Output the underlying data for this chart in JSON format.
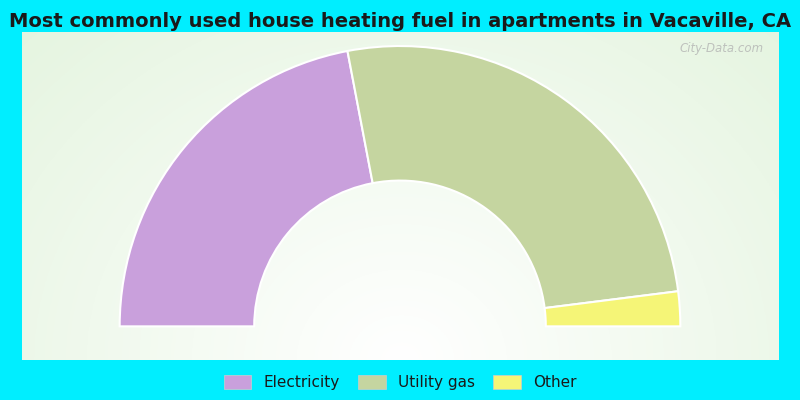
{
  "title": "Most commonly used house heating fuel in apartments in Vacaville, CA",
  "title_color": "#1a1a1a",
  "background_color": "#00eeff",
  "segments": [
    {
      "label": "Electricity",
      "value": 44,
      "color": "#c9a0dc"
    },
    {
      "label": "Utility gas",
      "value": 52,
      "color": "#c5d5a0"
    },
    {
      "label": "Other",
      "value": 4,
      "color": "#f5f577"
    }
  ],
  "legend_items": [
    {
      "label": "Electricity",
      "color": "#c9a0dc"
    },
    {
      "label": "Utility gas",
      "color": "#c5d5a0"
    },
    {
      "label": "Other",
      "color": "#f5f577"
    }
  ],
  "watermark": "City-Data.com",
  "title_fontsize": 14,
  "legend_fontsize": 11,
  "outer_r": 1.0,
  "inner_r": 0.52,
  "xlim": [
    -1.35,
    1.35
  ],
  "ylim": [
    -0.12,
    1.05
  ]
}
